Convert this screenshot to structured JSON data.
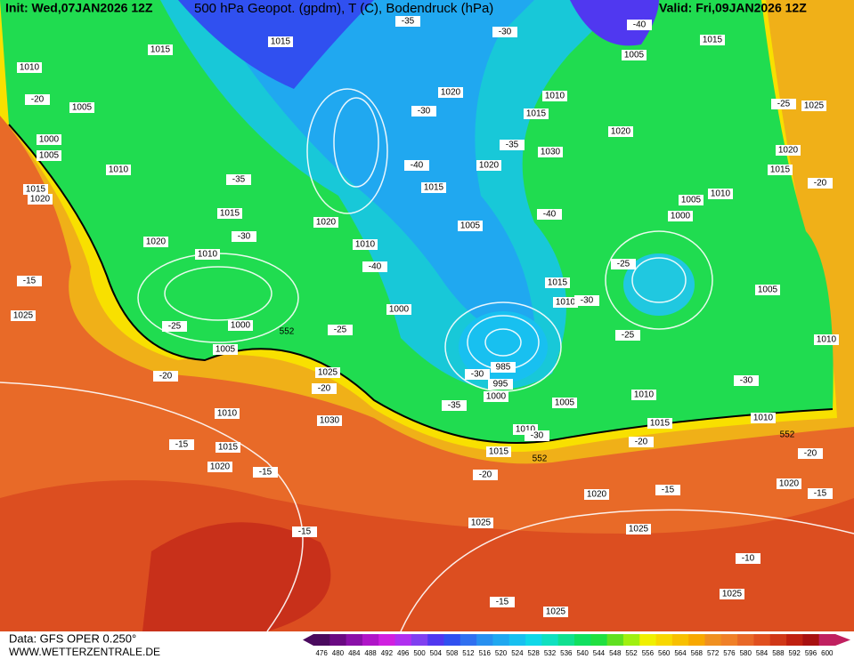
{
  "header": {
    "init": "Init: Wed,07JAN2026 12Z",
    "title": "500 hPa Geopot. (gpdm), T (C), Bodendruck (hPa)",
    "valid": "Valid: Fri,09JAN2026 12Z"
  },
  "footer": {
    "data_source": "Data: GFS OPER 0.250°",
    "website": "WWW.WETTERZENTRALE.DE"
  },
  "colorbar": {
    "labels": [
      "476",
      "480",
      "484",
      "488",
      "492",
      "496",
      "500",
      "504",
      "508",
      "512",
      "516",
      "520",
      "524",
      "528",
      "532",
      "536",
      "540",
      "544",
      "548",
      "552",
      "556",
      "560",
      "564",
      "568",
      "572",
      "576",
      "580",
      "584",
      "588",
      "592",
      "596",
      "600"
    ],
    "colors": [
      "#4a0a5e",
      "#6a0a82",
      "#8a10a8",
      "#b015c8",
      "#d020e0",
      "#b030f0",
      "#8040f0",
      "#5038f0",
      "#3050f0",
      "#3070f0",
      "#2890f0",
      "#20a8f0",
      "#18c0f0",
      "#10d8e8",
      "#10e0c0",
      "#10e090",
      "#10e060",
      "#20e040",
      "#60e020",
      "#a0f010",
      "#f0f000",
      "#f8d800",
      "#f8c000",
      "#f8a800",
      "#f09020",
      "#f08028",
      "#e86828",
      "#e05020",
      "#d03818",
      "#c02010",
      "#a81010",
      "#c02060"
    ]
  },
  "map": {
    "pressure_labels": [
      "1015",
      "1015",
      "1010",
      "1005",
      "1000",
      "1005",
      "1010",
      "1015",
      "1020",
      "1020",
      "1010",
      "1015",
      "1000",
      "1005",
      "1025",
      "1010",
      "1015",
      "1020",
      "1030",
      "1025",
      "1020",
      "1010",
      "1000",
      "1005",
      "1015",
      "1020",
      "1020",
      "985",
      "995",
      "1000",
      "1005",
      "1010",
      "1015",
      "1020",
      "1025",
      "1025",
      "1025",
      "1025",
      "1010",
      "1015",
      "1010",
      "1005",
      "1000",
      "1005",
      "1010",
      "1015",
      "1020",
      "1025",
      "1015",
      "1005",
      "1010",
      "1015",
      "1020",
      "1030",
      "1015",
      "1010",
      "1020",
      "1010"
    ],
    "temperature_labels": [
      "-35",
      "-30",
      "-40",
      "-20",
      "-35",
      "-30",
      "-15",
      "-25",
      "-20",
      "-25",
      "-40",
      "-40",
      "-35",
      "-40",
      "-25",
      "-30",
      "-25",
      "-30",
      "-25",
      "-20",
      "-20",
      "-35",
      "-30",
      "-30",
      "-20",
      "-20",
      "-20",
      "-15",
      "-15",
      "-15",
      "-15",
      "-15",
      "-10",
      "-15",
      "-30"
    ],
    "geopotential_labels": [
      "552",
      "552",
      "552"
    ]
  }
}
